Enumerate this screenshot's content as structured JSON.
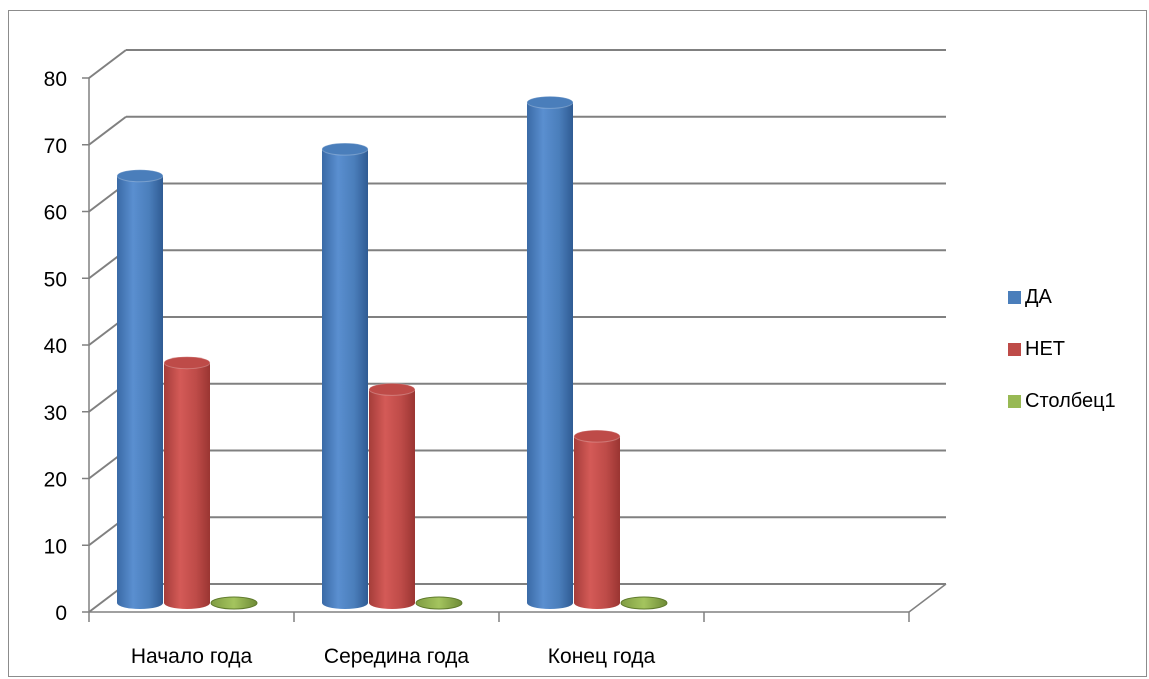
{
  "chart_data": {
    "type": "bar",
    "style": "3d-cylinder",
    "categories": [
      "Начало года",
      "Середина года",
      "Конец года"
    ],
    "series": [
      {
        "name": "ДА",
        "values": [
          64,
          68,
          75
        ],
        "color": "#4a7ebb"
      },
      {
        "name": "НЕТ",
        "values": [
          36,
          32,
          25
        ],
        "color": "#be4b48"
      },
      {
        "name": "Столбец1",
        "values": [
          0,
          0,
          0
        ],
        "color": "#98b954"
      }
    ],
    "ylim": [
      0,
      80
    ],
    "yticks": [
      0,
      10,
      20,
      30,
      40,
      50,
      60,
      70,
      80
    ],
    "grid": true,
    "legend": "right",
    "title": "",
    "xlabel": "",
    "ylabel": ""
  }
}
